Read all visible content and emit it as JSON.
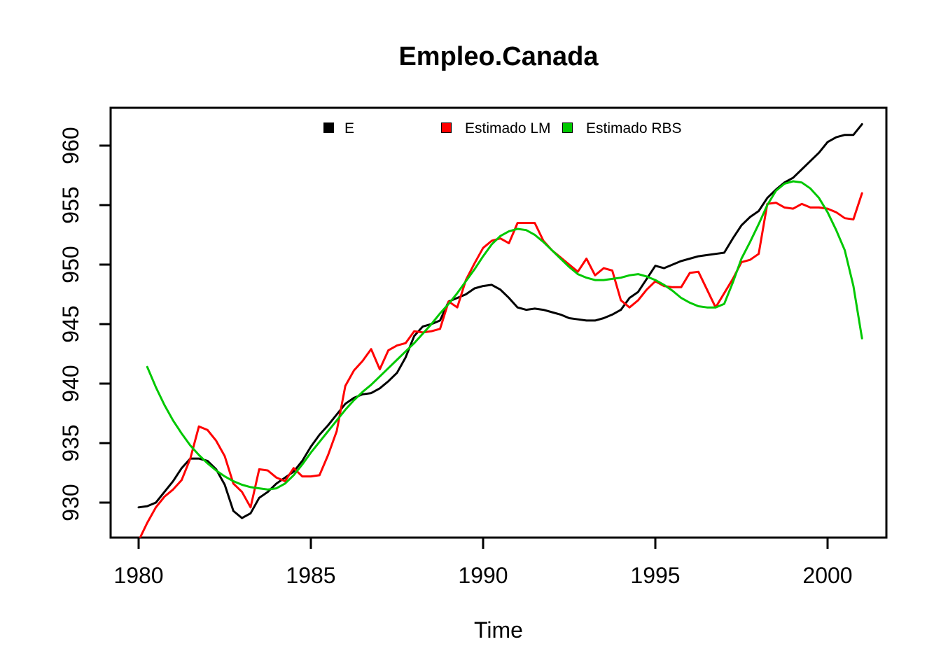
{
  "title": "Empleo.Canada",
  "x_axis_title": "Time",
  "legend": [
    {
      "label": "E",
      "color": "#000000"
    },
    {
      "label": "Estimado LM",
      "color": "#FF0000"
    },
    {
      "label": "Estimado RBS",
      "color": "#00C800"
    }
  ],
  "colors": {
    "series_e": "#000000",
    "series_lm": "#FF0000",
    "series_rbs": "#00C800",
    "axis": "#000000",
    "background": "#FFFFFF"
  },
  "chart_data": {
    "type": "line",
    "title": "Empleo.Canada",
    "xlabel": "Time",
    "ylabel": "",
    "x_ticks": [
      1980,
      1985,
      1990,
      1995,
      2000
    ],
    "y_ticks": [
      930,
      935,
      940,
      945,
      950,
      955,
      960
    ],
    "xlim": [
      1979.2,
      2001.8
    ],
    "ylim": [
      927.0,
      963.1
    ],
    "grid": false,
    "legend_position": "top-inside",
    "series": [
      {
        "name": "E",
        "color": "#000000",
        "start": 1980.0,
        "step": 0.25,
        "values": [
          929.6,
          929.7,
          930.0,
          930.9,
          931.8,
          932.9,
          933.7,
          933.7,
          933.5,
          932.8,
          931.5,
          929.3,
          928.7,
          929.1,
          930.4,
          930.9,
          931.6,
          932.1,
          932.6,
          933.5,
          934.7,
          935.7,
          936.5,
          937.4,
          938.3,
          938.8,
          939.1,
          939.2,
          939.6,
          940.2,
          940.9,
          942.2,
          944.0,
          944.8,
          945.0,
          945.3,
          946.9,
          947.2,
          947.5,
          948.0,
          948.2,
          948.3,
          947.9,
          947.2,
          946.4,
          946.2,
          946.3,
          946.2,
          946.0,
          945.8,
          945.5,
          945.4,
          945.3,
          945.3,
          945.5,
          945.8,
          946.2,
          947.2,
          947.7,
          948.8,
          949.9,
          949.7,
          950.0,
          950.3,
          950.5,
          950.7,
          950.8,
          950.9,
          951.0,
          952.2,
          953.3,
          954.0,
          954.5,
          955.6,
          956.3,
          956.9,
          957.3,
          958.0,
          958.7,
          959.4,
          960.3,
          960.7,
          960.9,
          960.9,
          961.8
        ]
      },
      {
        "name": "Estimado LM",
        "color": "#FF0000",
        "start": 1980.0,
        "step": 0.25,
        "values": [
          926.8,
          928.3,
          929.6,
          930.5,
          931.1,
          931.9,
          933.7,
          936.4,
          936.1,
          935.2,
          933.9,
          931.6,
          930.9,
          929.6,
          932.8,
          932.7,
          932.1,
          931.8,
          932.9,
          932.2,
          932.2,
          932.3,
          934.0,
          936.0,
          939.8,
          941.1,
          941.9,
          942.9,
          941.2,
          942.8,
          943.2,
          943.4,
          944.4,
          944.3,
          944.4,
          944.6,
          946.9,
          946.4,
          948.7,
          950.1,
          951.4,
          952.0,
          952.2,
          951.8,
          953.5,
          953.5,
          953.5,
          952.0,
          951.2,
          950.6,
          950.0,
          949.4,
          950.5,
          949.1,
          949.7,
          949.5,
          947.0,
          946.4,
          947.0,
          947.9,
          948.6,
          948.2,
          948.1,
          948.1,
          949.3,
          949.4,
          947.9,
          946.4,
          947.6,
          948.8,
          950.2,
          950.4,
          950.9,
          955.1,
          955.2,
          954.8,
          954.7,
          955.1,
          954.8,
          954.8,
          954.7,
          954.4,
          953.9,
          953.8,
          956.0
        ]
      },
      {
        "name": "Estimado RBS",
        "color": "#00C800",
        "start": 1980.25,
        "step": 0.25,
        "values": [
          941.4,
          939.7,
          938.2,
          936.9,
          935.8,
          934.8,
          934.0,
          933.3,
          932.7,
          932.2,
          931.8,
          931.5,
          931.3,
          931.2,
          931.1,
          931.2,
          931.6,
          932.3,
          933.2,
          934.2,
          935.1,
          936.0,
          936.9,
          937.8,
          938.6,
          939.3,
          939.9,
          940.6,
          941.3,
          942.0,
          942.7,
          943.4,
          944.2,
          945.0,
          945.9,
          946.7,
          947.6,
          948.6,
          949.6,
          950.7,
          951.7,
          952.4,
          952.8,
          953.0,
          952.9,
          952.5,
          951.9,
          951.2,
          950.5,
          949.8,
          949.2,
          948.9,
          948.7,
          948.7,
          948.8,
          948.9,
          949.1,
          949.2,
          949.0,
          948.7,
          948.3,
          947.8,
          947.2,
          946.8,
          946.5,
          946.4,
          946.4,
          946.7,
          948.5,
          950.5,
          951.9,
          953.4,
          955.0,
          956.2,
          956.8,
          957.0,
          956.9,
          956.4,
          955.6,
          954.4,
          952.9,
          951.2,
          948.2,
          943.8
        ]
      }
    ]
  }
}
